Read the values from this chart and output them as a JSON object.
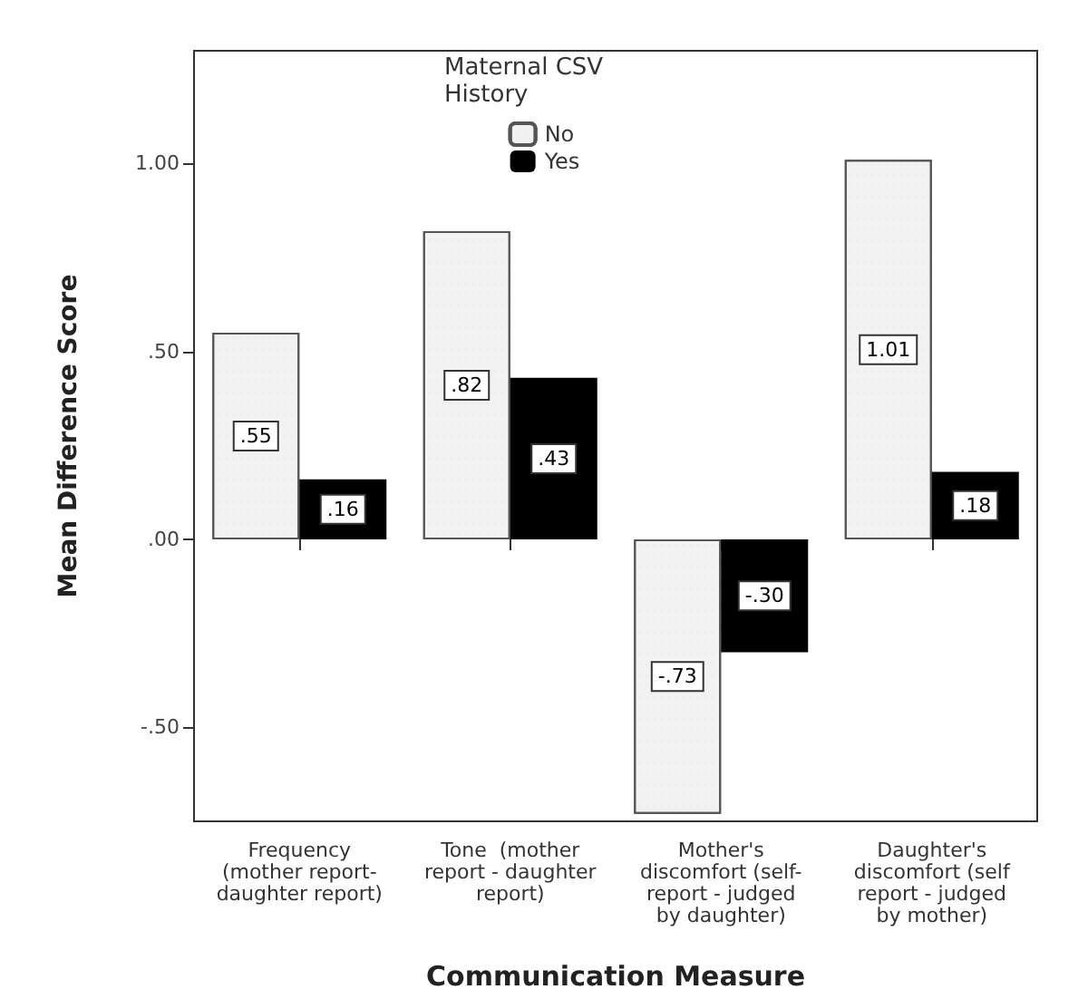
{
  "chart_data": {
    "type": "bar",
    "xlabel": "Communication Measure",
    "ylabel": "Mean Difference Score",
    "legend_title": "Maternal CSV History",
    "legend": "top",
    "grid": false,
    "categories": [
      "Frequency\n(mother report-\ndaughter report)",
      "Tone  (mother\nreport - daughter\nreport)",
      "Mother's\ndiscomfort (self-\nreport - judged\nby daughter)",
      "Daughter's\ndiscomfort (self\nreport - judged\nby mother)"
    ],
    "series": [
      {
        "name": "No",
        "color": "#f2f2f2",
        "values": [
          0.55,
          0.82,
          -0.73,
          1.01
        ],
        "value_labels": [
          ".55",
          ".82",
          "-.73",
          "1.01"
        ]
      },
      {
        "name": "Yes",
        "color": "#000000",
        "values": [
          0.16,
          0.43,
          -0.3,
          0.18
        ],
        "value_labels": [
          ".16",
          ".43",
          "-.30",
          ".18"
        ]
      }
    ],
    "ylim": [
      -0.75,
      1.3
    ],
    "yticks": [
      {
        "value": -0.5,
        "label": "-.50"
      },
      {
        "value": 0,
        "label": ".00"
      },
      {
        "value": 0.5,
        "label": ".50"
      },
      {
        "value": 1,
        "label": "1.00"
      }
    ]
  }
}
